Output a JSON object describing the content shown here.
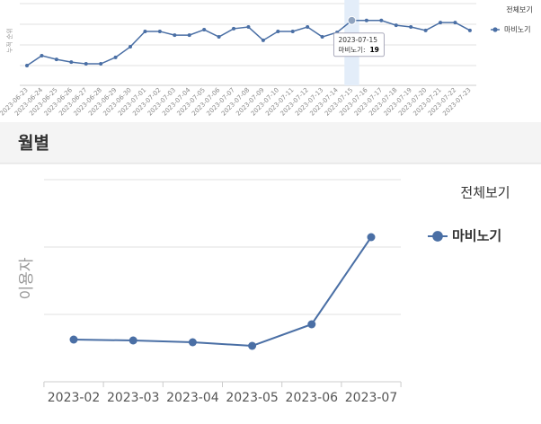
{
  "section_title": "월별",
  "chart_data": [
    {
      "type": "line",
      "y_label": "누적 순위",
      "legend_title": "전체보기",
      "x": [
        "2023-06-23",
        "2023-06-24",
        "2023-06-25",
        "2023-06-26",
        "2023-06-27",
        "2023-06-28",
        "2023-06-29",
        "2023-06-30",
        "2023-07-01",
        "2023-07-02",
        "2023-07-03",
        "2023-07-04",
        "2023-07-05",
        "2023-07-06",
        "2023-07-07",
        "2023-07-08",
        "2023-07-09",
        "2023-07-10",
        "2023-07-11",
        "2023-07-12",
        "2023-07-13",
        "2023-07-14",
        "2023-07-15",
        "2023-07-16",
        "2023-07-17",
        "2023-07-18",
        "2023-07-19",
        "2023-07-20",
        "2023-07-21",
        "2023-07-22",
        "2023-07-23"
      ],
      "series": [
        {
          "name": "마비노기",
          "color": "#4a6fa5",
          "values": [
            5.8,
            8.7,
            7.6,
            6.8,
            6.3,
            6.3,
            8.2,
            11.3,
            15.8,
            15.8,
            14.7,
            14.7,
            16.3,
            14.2,
            16.6,
            17.1,
            13.2,
            15.8,
            15.8,
            17.1,
            14.2,
            15.5,
            19,
            19,
            19,
            17.6,
            17.1,
            16.1,
            18.4,
            18.4,
            16.1
          ]
        }
      ],
      "ylim": [
        0,
        25
      ],
      "tooltip": {
        "label": "마비노기:",
        "index": 22
      }
    },
    {
      "type": "line",
      "y_label": "이용자",
      "legend_title": "전체보기",
      "categories": [
        "2023-02",
        "2023-03",
        "2023-04",
        "2023-05",
        "2023-06",
        "2023-07"
      ],
      "series": [
        {
          "name": "마비노기",
          "color": "#4a6fa5",
          "values": [
            47,
            46,
            44,
            40,
            64,
            161
          ]
        }
      ],
      "ylim": [
        0,
        225
      ]
    }
  ]
}
